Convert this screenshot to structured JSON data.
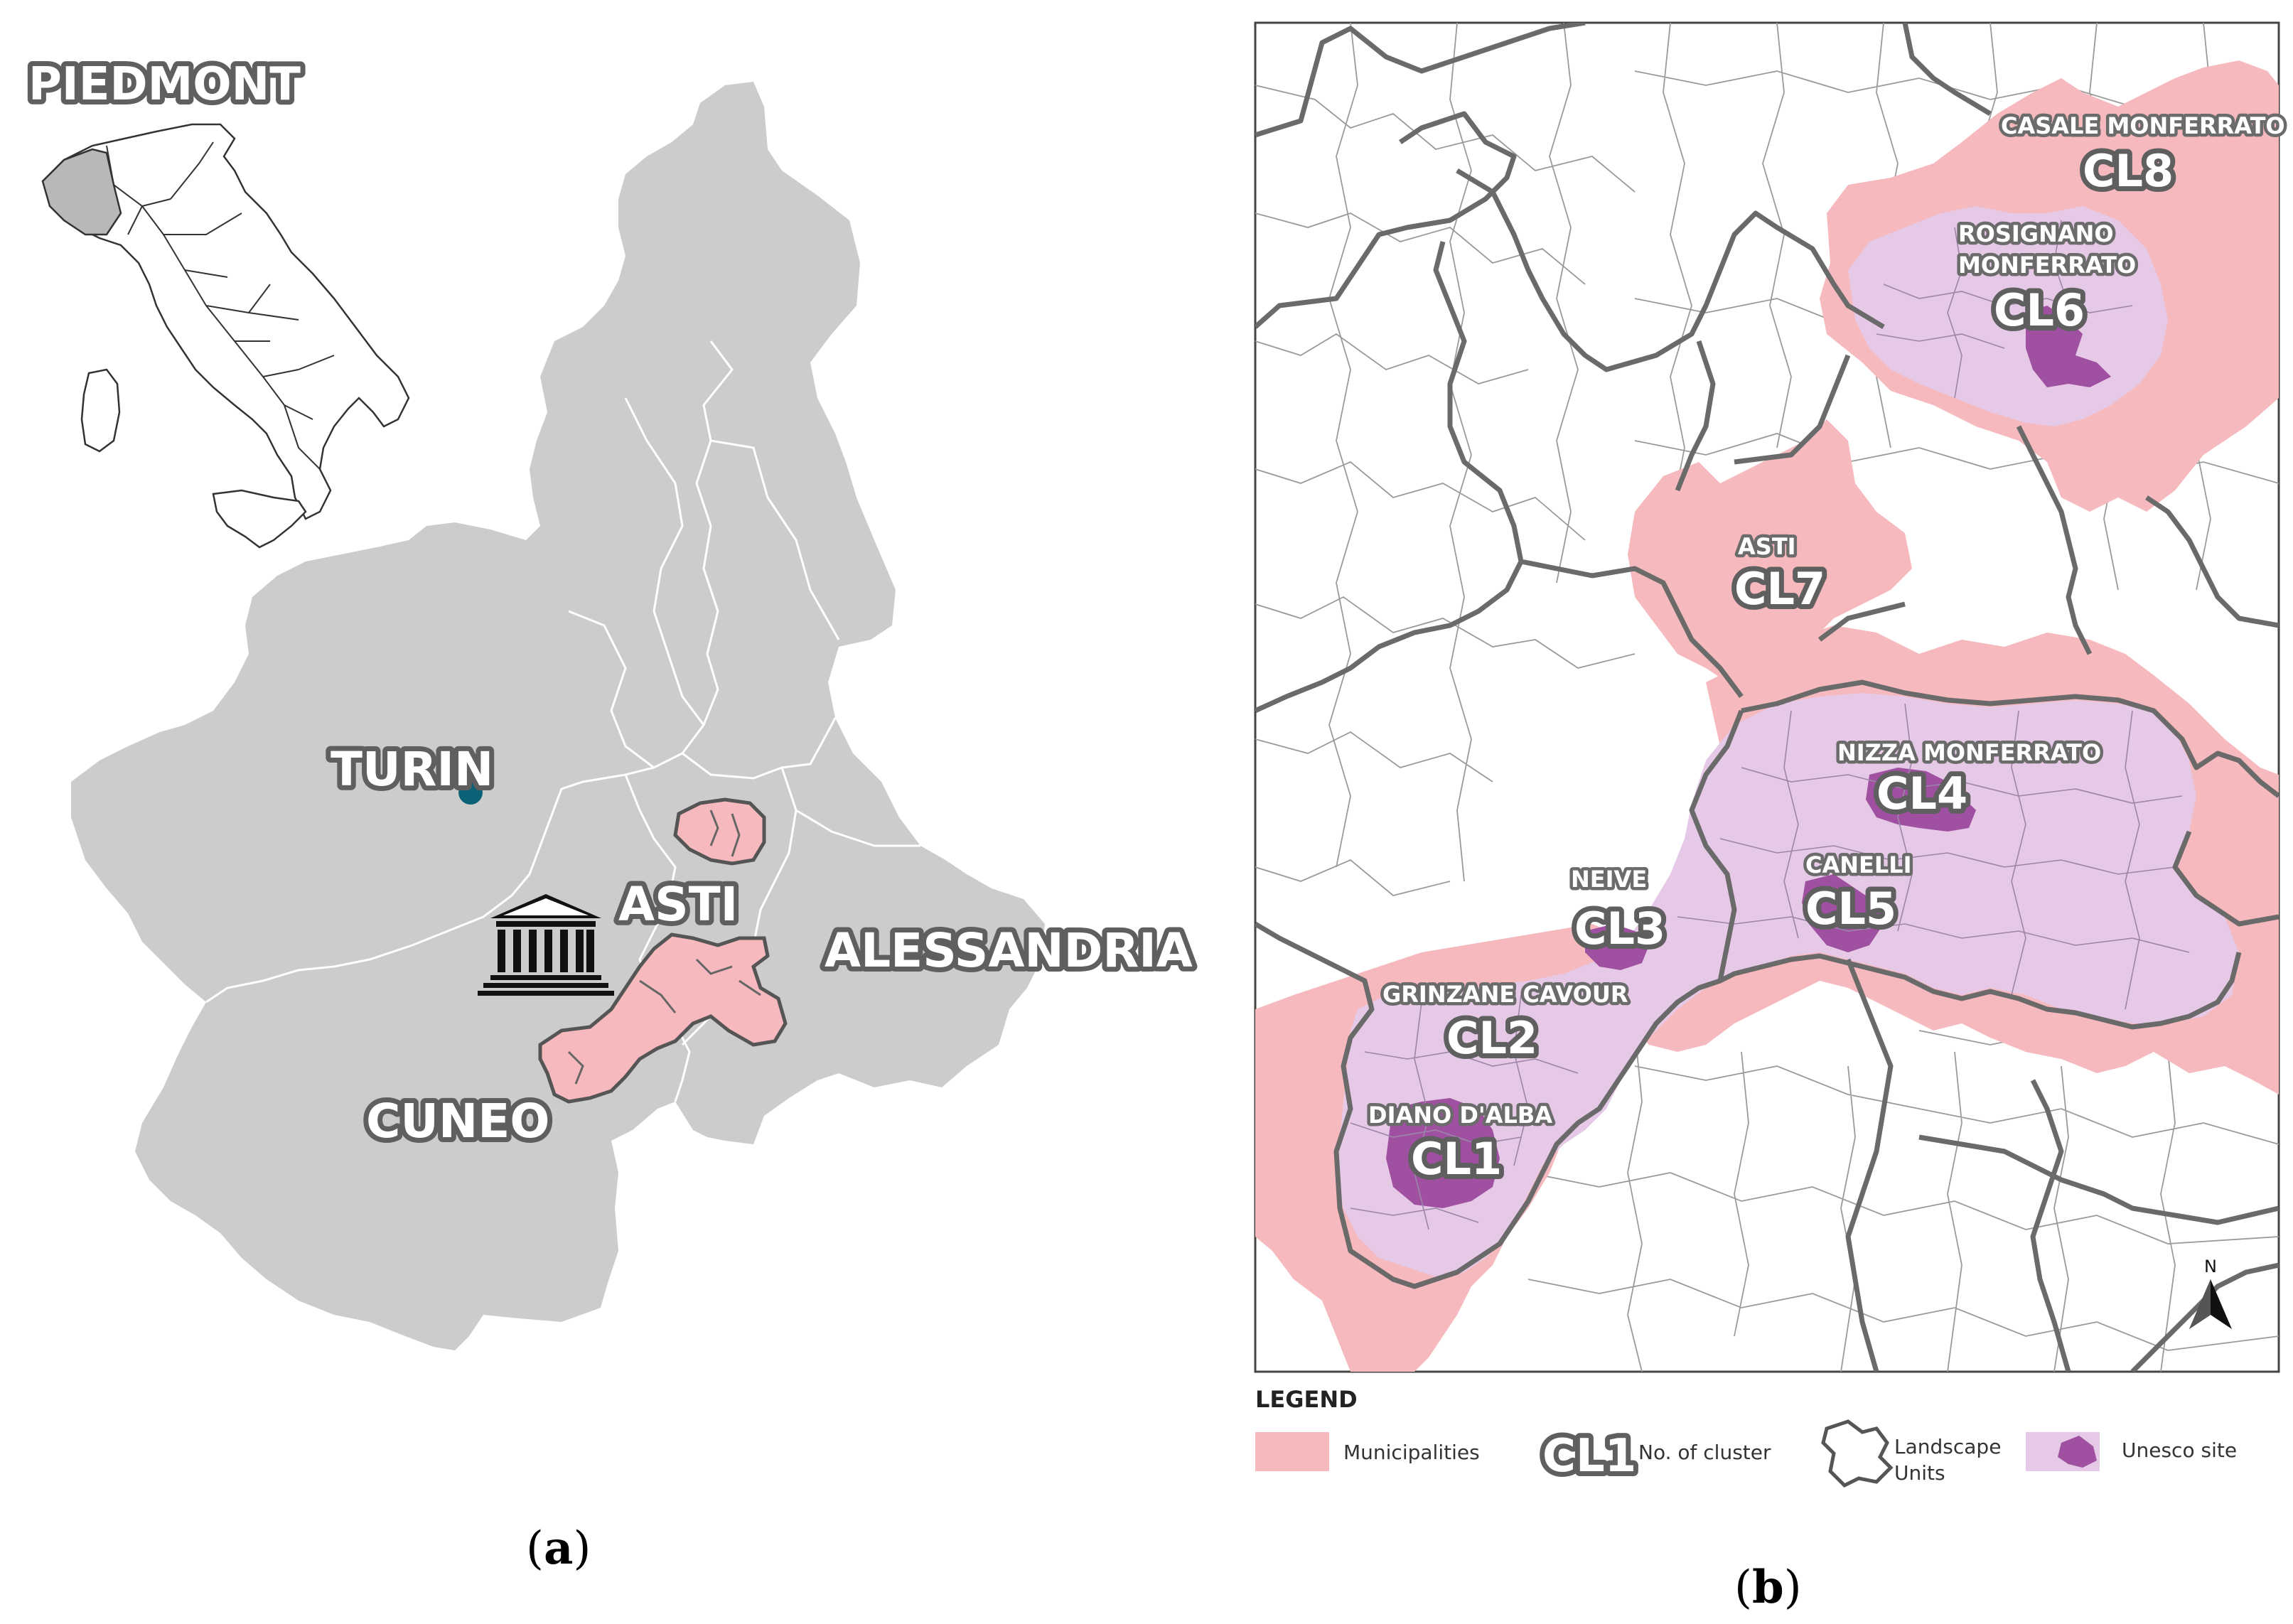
{
  "colors": {
    "region": "#cccccc",
    "region_stroke": "#ffffff",
    "municipality": "#f6b9bd",
    "unesco_light": "#e6c9e6",
    "unesco_core": "#a050a0",
    "unesco_core_text": "#8a3a8a",
    "boundary": "#6a6a6a",
    "turin_dot": "#0b6175"
  },
  "panel_a": {
    "label_a_paren_open": "(",
    "label_a_letter": "a",
    "label_a_paren_close": ")",
    "inset_title": "PIEDMONT",
    "city": "TURIN",
    "province_asti": "ASTI",
    "province_alessandria": "ALESSANDRIA",
    "province_cuneo": "CUNEO",
    "unesco_text": "UNESCO"
  },
  "panel_b": {
    "label_b_paren_open": "(",
    "label_b_letter": "b",
    "label_b_paren_close": ")",
    "north": "N",
    "clusters": [
      {
        "place": "DIANO D'ALBA",
        "code": "CL1"
      },
      {
        "place": "GRINZANE CAVOUR",
        "code": "CL2"
      },
      {
        "place": "NEIVE",
        "code": "CL3"
      },
      {
        "place": "NIZZA MONFERRATO",
        "code": "CL4"
      },
      {
        "place": "CANELLI",
        "code": "CL5"
      },
      {
        "place_line1": "ROSIGNANO",
        "place_line2": "MONFERRATO",
        "code": "CL6"
      },
      {
        "place": "ASTI",
        "code": "CL7"
      },
      {
        "place": "CASALE MONFERRATO",
        "code": "CL8"
      }
    ],
    "legend": {
      "title": "LEGEND",
      "municipalities": "Municipalities",
      "cluster_symbol": "CL1",
      "cluster_label": "No. of cluster",
      "landscape_line1": "Landscape",
      "landscape_line2": "Units",
      "unesco": "Unesco site"
    }
  }
}
